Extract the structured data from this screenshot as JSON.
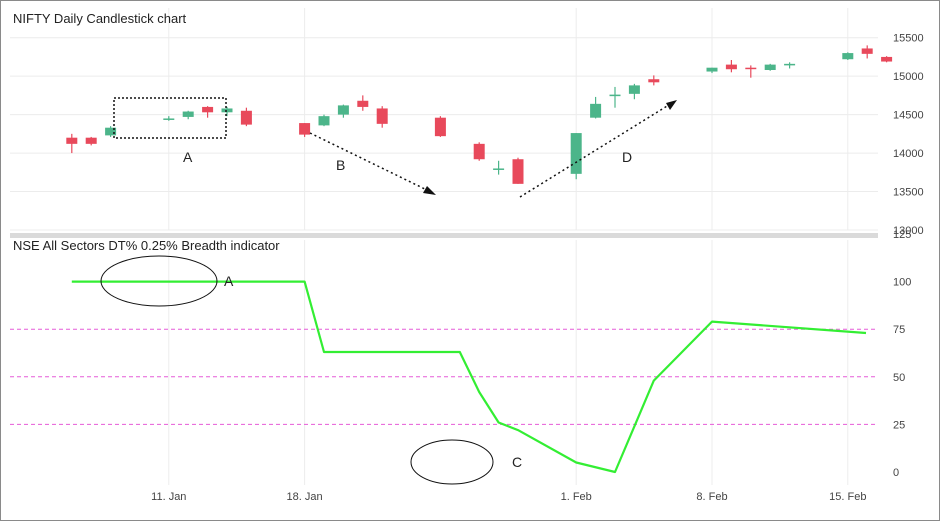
{
  "colors": {
    "up": "#4cb58a",
    "down": "#e8495b",
    "breadth_line": "#33ee33",
    "reference_lines": "#e65bd8",
    "grid": "#ececec",
    "annotation": "#111111"
  },
  "chart_data": [
    {
      "type": "candlestick",
      "title": "NIFTY Daily Candlestick chart",
      "ylim": [
        13000,
        15600
      ],
      "yticks": [
        13000,
        13500,
        14000,
        14500,
        15000,
        15500
      ],
      "xticks": [
        "11. Jan",
        "18. Jan",
        "1. Feb",
        "8. Feb",
        "15. Feb"
      ],
      "candles": [
        {
          "date": "2021-01-06",
          "open": 14200,
          "high": 14250,
          "low": 14000,
          "close": 14120
        },
        {
          "date": "2021-01-07",
          "open": 14200,
          "high": 14210,
          "low": 14100,
          "close": 14120
        },
        {
          "date": "2021-01-08",
          "open": 14230,
          "high": 14350,
          "low": 14210,
          "close": 14330
        },
        {
          "date": "2021-01-11",
          "open": 14440,
          "high": 14480,
          "low": 14420,
          "close": 14450
        },
        {
          "date": "2021-01-12",
          "open": 14470,
          "high": 14550,
          "low": 14440,
          "close": 14540
        },
        {
          "date": "2021-01-13",
          "open": 14600,
          "high": 14610,
          "low": 14460,
          "close": 14530
        },
        {
          "date": "2021-01-14",
          "open": 14530,
          "high": 14600,
          "low": 14480,
          "close": 14580
        },
        {
          "date": "2021-01-15",
          "open": 14550,
          "high": 14590,
          "low": 14350,
          "close": 14370
        },
        {
          "date": "2021-01-18",
          "open": 14390,
          "high": 14390,
          "low": 14210,
          "close": 14240
        },
        {
          "date": "2021-01-19",
          "open": 14360,
          "high": 14500,
          "low": 14350,
          "close": 14480
        },
        {
          "date": "2021-01-20",
          "open": 14500,
          "high": 14630,
          "low": 14460,
          "close": 14620
        },
        {
          "date": "2021-01-21",
          "open": 14680,
          "high": 14750,
          "low": 14550,
          "close": 14600
        },
        {
          "date": "2021-01-22",
          "open": 14580,
          "high": 14610,
          "low": 14330,
          "close": 14380
        },
        {
          "date": "2021-01-25",
          "open": 14460,
          "high": 14480,
          "low": 14210,
          "close": 14220
        },
        {
          "date": "2021-01-27",
          "open": 14120,
          "high": 14140,
          "low": 13900,
          "close": 13920
        },
        {
          "date": "2021-01-28",
          "open": 13800,
          "high": 13900,
          "low": 13720,
          "close": 13800
        },
        {
          "date": "2021-01-29",
          "open": 13920,
          "high": 13940,
          "low": 13600,
          "close": 13600
        },
        {
          "date": "2021-02-01",
          "open": 13730,
          "high": 14260,
          "low": 13660,
          "close": 14260
        },
        {
          "date": "2021-02-02",
          "open": 14460,
          "high": 14730,
          "low": 14450,
          "close": 14640
        },
        {
          "date": "2021-02-03",
          "open": 14740,
          "high": 14860,
          "low": 14590,
          "close": 14760
        },
        {
          "date": "2021-02-04",
          "open": 14770,
          "high": 14900,
          "low": 14700,
          "close": 14880
        },
        {
          "date": "2021-02-05",
          "open": 14960,
          "high": 15010,
          "low": 14880,
          "close": 14920
        },
        {
          "date": "2021-02-08",
          "open": 15060,
          "high": 15110,
          "low": 15040,
          "close": 15110
        },
        {
          "date": "2021-02-09",
          "open": 15150,
          "high": 15210,
          "low": 15050,
          "close": 15090
        },
        {
          "date": "2021-02-10",
          "open": 15110,
          "high": 15140,
          "low": 14980,
          "close": 15100
        },
        {
          "date": "2021-02-11",
          "open": 15080,
          "high": 15160,
          "low": 15070,
          "close": 15150
        },
        {
          "date": "2021-02-12",
          "open": 15140,
          "high": 15180,
          "low": 15100,
          "close": 15160
        },
        {
          "date": "2021-02-15",
          "open": 15220,
          "high": 15310,
          "low": 15210,
          "close": 15300
        },
        {
          "date": "2021-02-16",
          "open": 15360,
          "high": 15400,
          "low": 15230,
          "close": 15290
        },
        {
          "date": "2021-02-17",
          "open": 15250,
          "high": 15260,
          "low": 15180,
          "close": 15190
        }
      ],
      "annotations": [
        "A",
        "B",
        "D"
      ]
    },
    {
      "type": "line",
      "title": "NSE All Sectors DT% 0.25% Breadth indicator",
      "ylim": [
        0,
        125
      ],
      "yticks": [
        0,
        25,
        50,
        75,
        100,
        125
      ],
      "reference_lines": [
        25,
        50,
        75
      ],
      "x": [
        "2021-01-06",
        "2021-01-18",
        "2021-01-19",
        "2021-01-26",
        "2021-01-27",
        "2021-01-28",
        "2021-01-29",
        "2021-02-01",
        "2021-02-03",
        "2021-02-05",
        "2021-02-08",
        "2021-02-19"
      ],
      "values": [
        100,
        100,
        63,
        63,
        42,
        26,
        22,
        5,
        0,
        48,
        79,
        73
      ],
      "annotations": [
        "A",
        "C"
      ]
    }
  ]
}
